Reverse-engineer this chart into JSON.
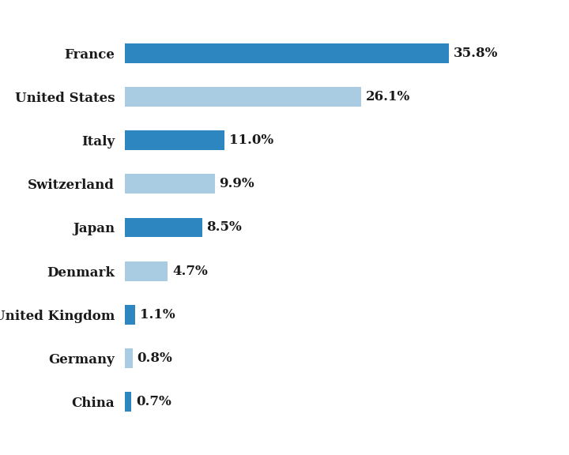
{
  "categories": [
    "France",
    "United States",
    "Italy",
    "Switzerland",
    "Japan",
    "Denmark",
    "United Kingdom",
    "Germany",
    "China"
  ],
  "values": [
    35.8,
    26.1,
    11.0,
    9.9,
    8.5,
    4.7,
    1.1,
    0.8,
    0.7
  ],
  "labels": [
    "35.8%",
    "26.1%",
    "11.0%",
    "9.9%",
    "8.5%",
    "4.7%",
    "1.1%",
    "0.8%",
    "0.7%"
  ],
  "colors": [
    "#2e86c1",
    "#a9cce3",
    "#2e86c1",
    "#a9cce3",
    "#2e86c1",
    "#a9cce3",
    "#2e86c1",
    "#a9cce3",
    "#2e86c1"
  ],
  "background_color": "#ffffff",
  "bar_height": 0.45,
  "xlim": [
    0,
    44
  ],
  "label_fontsize": 12,
  "value_fontsize": 12,
  "label_color": "#1a1a1a",
  "fig_bg": "#ffffff"
}
